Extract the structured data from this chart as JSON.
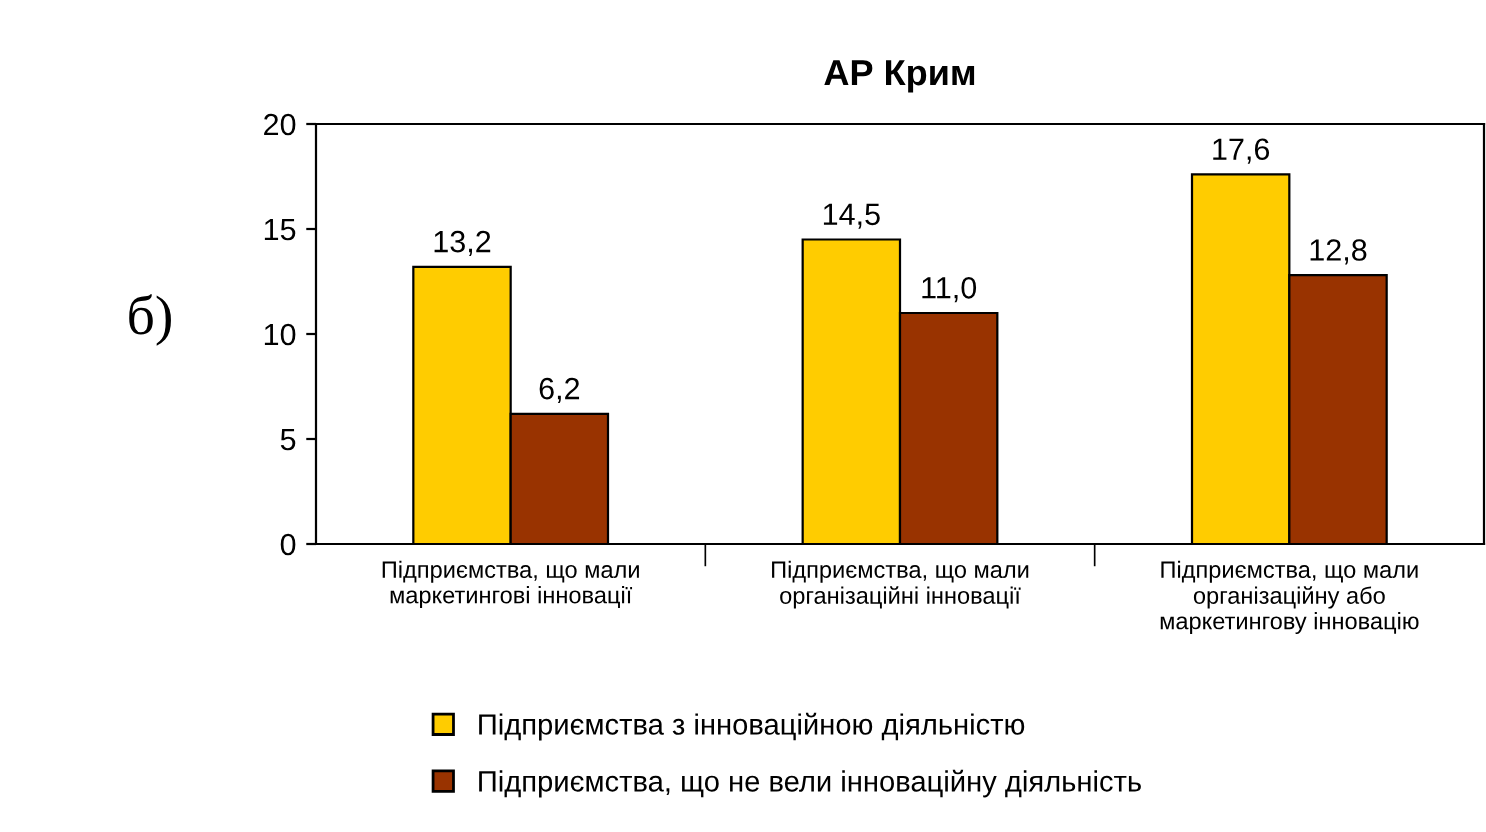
{
  "chart_data": {
    "type": "bar",
    "title": "АР Крим",
    "categories": [
      "Підприємства, що мали\nмаркетингові інновації",
      "Підприємства, що мали\nорганізаційні інновації",
      "Підприємства, що мали\nорганізаційну або\nмаркетингову інновацію"
    ],
    "series": [
      {
        "name": "Підприємства з інноваційною діяльністю",
        "color": "#ffcc00",
        "values": [
          13.2,
          14.5,
          17.6
        ],
        "value_labels": [
          "13,2",
          "14,5",
          "17,6"
        ]
      },
      {
        "name": "Підприємства, що не вели інноваційну діяльність",
        "color": "#993300",
        "values": [
          6.2,
          11.0,
          12.8
        ],
        "value_labels": [
          "6,2",
          "11,0",
          "12,8"
        ]
      }
    ],
    "ylim": [
      0,
      20
    ],
    "yticks": [
      0,
      5,
      10,
      15,
      20
    ],
    "grid": false,
    "legend": "bottom",
    "annotations": [
      "б)"
    ]
  }
}
